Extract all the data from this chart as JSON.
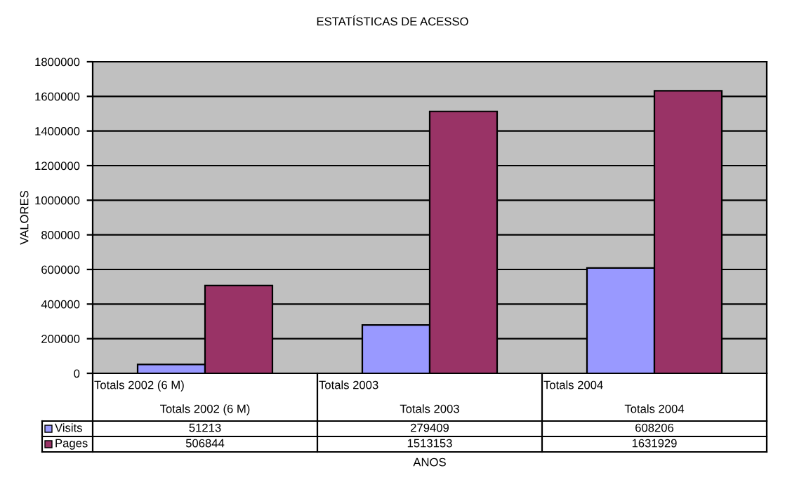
{
  "chart_data": {
    "type": "bar",
    "title": "ESTATÍSTICAS DE ACESSO",
    "xlabel": "ANOS",
    "ylabel": "VALORES",
    "categories": [
      "Totals 2002 (6 M)",
      "Totals 2003",
      "Totals 2004"
    ],
    "series": [
      {
        "name": "Visits",
        "color": "#9999ff",
        "values": [
          51213,
          279409,
          608206
        ]
      },
      {
        "name": "Pages",
        "color": "#993366",
        "values": [
          506844,
          1513153,
          1631929
        ]
      }
    ],
    "ylim": [
      0,
      1800000
    ],
    "yticks": [
      0,
      200000,
      400000,
      600000,
      800000,
      1000000,
      1200000,
      1400000,
      1600000,
      1800000
    ],
    "grid": "y",
    "data_labels": true,
    "legend": "bottom left"
  }
}
